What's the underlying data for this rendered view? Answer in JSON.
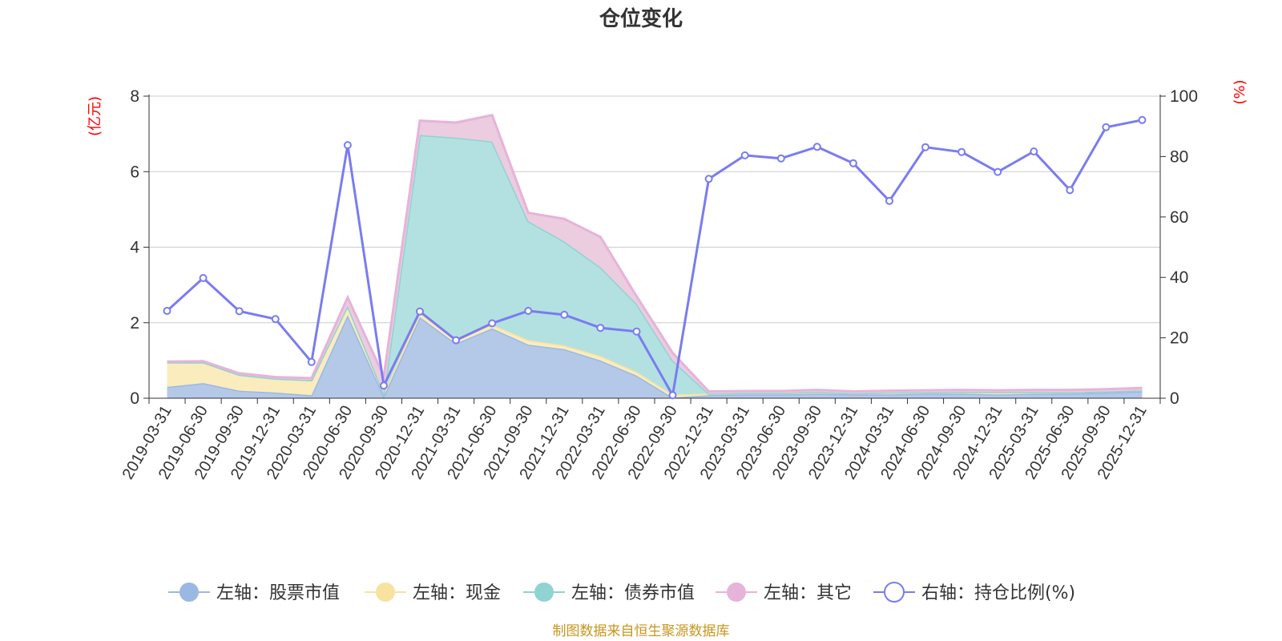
{
  "chart_data": {
    "type": "area",
    "title": "仓位变化",
    "left_axis": {
      "unit": "(亿元)",
      "ylim": [
        0,
        8
      ],
      "ticks": [
        "0",
        "2",
        "4",
        "6",
        "8"
      ]
    },
    "right_axis": {
      "unit": "(%)",
      "ylim": [
        0,
        100
      ],
      "ticks": [
        "0",
        "20",
        "40",
        "60",
        "80",
        "100"
      ]
    },
    "categories": [
      "2019-03-31",
      "2019-06-30",
      "2019-09-30",
      "2019-12-31",
      "2020-03-31",
      "2020-06-30",
      "2020-09-30",
      "2020-12-31",
      "2021-03-31",
      "2021-06-30",
      "2021-09-30",
      "2021-12-31",
      "2022-03-31",
      "2022-06-30",
      "2022-09-30",
      "2022-12-31",
      "2023-03-31",
      "2023-06-30",
      "2023-09-30",
      "2023-12-31",
      "2024-03-31",
      "2024-06-30",
      "2024-09-30",
      "2024-12-31",
      "2025-03-31",
      "2025-06-30",
      "2025-09-30",
      "2025-12-31"
    ],
    "series": [
      {
        "name": "左轴：股票市值",
        "axis": "left",
        "kind": "stacked-area",
        "color": "#9bb8e3",
        "fill": "#b4c9e8",
        "values": [
          0.3,
          0.4,
          0.2,
          0.15,
          0.08,
          2.2,
          0.05,
          2.15,
          1.45,
          1.85,
          1.42,
          1.3,
          1.0,
          0.6,
          0.02,
          0.08,
          0.1,
          0.1,
          0.12,
          0.1,
          0.1,
          0.12,
          0.12,
          0.1,
          0.12,
          0.12,
          0.15,
          0.18
        ]
      },
      {
        "name": "左轴：现金",
        "axis": "left",
        "kind": "stacked-area",
        "color": "#f7e2a0",
        "fill": "#faecbd",
        "values": [
          0.65,
          0.55,
          0.42,
          0.37,
          0.4,
          0.25,
          0.08,
          0.12,
          0.1,
          0.1,
          0.12,
          0.1,
          0.12,
          0.1,
          0.08,
          0.04,
          0.04,
          0.04,
          0.05,
          0.03,
          0.05,
          0.04,
          0.05,
          0.06,
          0.05,
          0.04,
          0.03,
          0.03
        ]
      },
      {
        "name": "左轴：债券市值",
        "axis": "left",
        "kind": "stacked-area",
        "color": "#8fd3d3",
        "fill": "#b3e1e1",
        "values": [
          0,
          0,
          0,
          0,
          0,
          0,
          0,
          4.7,
          5.35,
          4.85,
          3.15,
          2.75,
          2.35,
          1.8,
          0.9,
          0,
          0,
          0,
          0,
          0,
          0,
          0,
          0,
          0,
          0,
          0,
          0,
          0
        ]
      },
      {
        "name": "左轴：其它",
        "axis": "left",
        "kind": "stacked-area",
        "color": "#e6b3d9",
        "fill": "#ecccdf",
        "values": [
          0.02,
          0.03,
          0.04,
          0.04,
          0.05,
          0.22,
          0.45,
          0.38,
          0.4,
          0.7,
          0.22,
          0.6,
          0.8,
          0.2,
          0.2,
          0.06,
          0.05,
          0.05,
          0.05,
          0.05,
          0.05,
          0.05,
          0.05,
          0.05,
          0.05,
          0.06,
          0.06,
          0.06
        ]
      },
      {
        "name": "右轴：持仓比例(%)",
        "axis": "right",
        "kind": "line",
        "color": "#7a7cf0",
        "values": [
          28.9,
          39.8,
          28.8,
          26.2,
          12.0,
          83.8,
          4.2,
          28.7,
          19.2,
          24.8,
          28.9,
          27.6,
          23.3,
          22.1,
          1.0,
          72.6,
          80.4,
          79.4,
          83.2,
          77.8,
          65.3,
          83.1,
          81.5,
          74.9,
          81.7,
          68.9,
          89.7,
          92.1
        ]
      }
    ],
    "legend_position": "bottom-center",
    "grid": "horizontal",
    "source_note": "制图数据来自恒生聚源数据库"
  }
}
